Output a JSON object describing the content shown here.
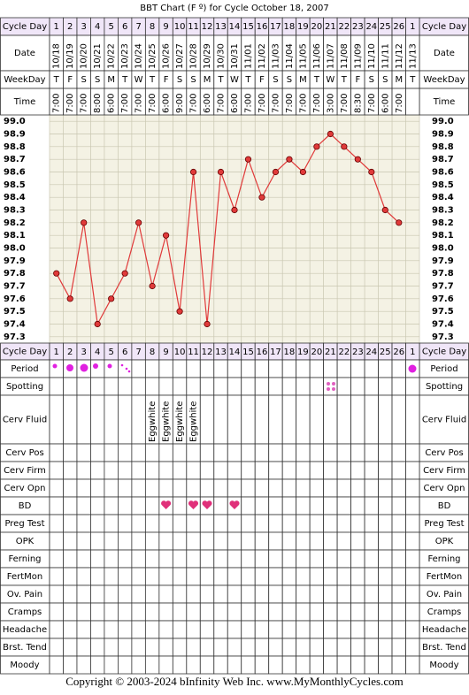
{
  "chart_data": {
    "type": "line",
    "title": "BBT Chart (F º) for Cycle October 18, 2007",
    "cycle_days": [
      1,
      2,
      3,
      4,
      5,
      6,
      7,
      8,
      9,
      10,
      11,
      12,
      13,
      14,
      15,
      16,
      17,
      18,
      19,
      20,
      21,
      22,
      23,
      24,
      25,
      26,
      1
    ],
    "categories": [
      "10/18",
      "10/19",
      "10/20",
      "10/21",
      "10/22",
      "10/23",
      "10/24",
      "10/25",
      "10/26",
      "10/27",
      "10/28",
      "10/29",
      "10/30",
      "10/31",
      "11/01",
      "11/02",
      "11/03",
      "11/04",
      "11/05",
      "11/06",
      "11/07",
      "11/08",
      "11/09",
      "11/10",
      "11/11",
      "11/12",
      "11/13"
    ],
    "weekdays": [
      "T",
      "F",
      "S",
      "S",
      "M",
      "T",
      "W",
      "T",
      "F",
      "S",
      "S",
      "M",
      "T",
      "W",
      "T",
      "F",
      "S",
      "S",
      "M",
      "T",
      "W",
      "T",
      "F",
      "S",
      "S",
      "M",
      "T"
    ],
    "times": [
      "7:00",
      "7:00",
      "7:00",
      "8:00",
      "6:00",
      "7:00",
      "7:00",
      "7:00",
      "6:00",
      "9:00",
      "7:00",
      "6:00",
      "7:00",
      "6:00",
      "7:00",
      "7:00",
      "7:00",
      "7:00",
      "7:00",
      "7:00",
      "3:00",
      "7:00",
      "8:30",
      "7:00",
      "6:00",
      "7:00",
      null
    ],
    "values": [
      97.8,
      97.6,
      98.2,
      97.4,
      97.6,
      97.8,
      98.2,
      97.7,
      98.1,
      97.5,
      98.6,
      97.4,
      98.6,
      98.3,
      98.7,
      98.4,
      98.6,
      98.7,
      98.6,
      98.8,
      98.9,
      98.8,
      98.7,
      98.6,
      98.3,
      98.2,
      null
    ],
    "color": "#e03a3a",
    "ylim": [
      97.25,
      99.05
    ],
    "yticks": [
      {
        "value": 99.0,
        "label": "99.0"
      },
      98.9,
      98.8,
      98.7,
      98.6,
      98.5,
      98.4,
      98.3,
      98.2,
      98.1,
      {
        "value": 98.0,
        "label": "98.0"
      },
      97.9,
      97.8,
      97.7,
      97.6,
      97.5,
      97.4,
      97.3
    ],
    "grid": true
  },
  "top_rows": [
    "Cycle Day",
    "Date",
    "WeekDay",
    "Time"
  ],
  "bottom_rows": [
    "Cycle Day",
    "Period",
    "Spotting",
    "Cerv Fluid",
    "Cerv Pos",
    "Cerv Firm",
    "Cerv Opn",
    "BD",
    "Preg Test",
    "OPK",
    "Ferning",
    "FertMon",
    "Ov. Pain",
    "Cramps",
    "Headache",
    "Brst. Tend",
    "Moody"
  ],
  "cerv_fluid": [
    null,
    null,
    null,
    null,
    null,
    null,
    null,
    "Eggwhite",
    "Eggwhite",
    "Eggwhite",
    "Eggwhite",
    null,
    null,
    null,
    null,
    null,
    null,
    null,
    null,
    null,
    null,
    null,
    null,
    null,
    null,
    null,
    null
  ],
  "footer": "Copyright © 2003-2024 bInfinity Web Inc.     www.MyMonthlyCycles.com"
}
